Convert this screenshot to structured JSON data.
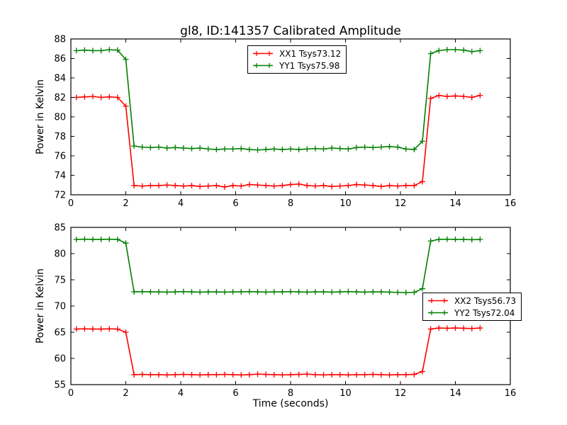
{
  "figure": {
    "title": "gl8, ID:141357 Calibrated Amplitude",
    "background": "#ffffff"
  },
  "colors": {
    "red_series": "#ff0000",
    "green_series": "#007f00",
    "axis": "#000000"
  },
  "chart_data": [
    {
      "type": "line",
      "ylabel": "Power in Kelvin",
      "xlabel": "",
      "xlim": [
        0,
        16
      ],
      "ylim": [
        72,
        88
      ],
      "xticks": [
        0,
        2,
        4,
        6,
        8,
        10,
        12,
        14,
        16
      ],
      "yticks": [
        72,
        74,
        76,
        78,
        80,
        82,
        84,
        86,
        88
      ],
      "grid": false,
      "legend_position": "top-center",
      "x": [
        0.2,
        0.5,
        0.8,
        1.1,
        1.4,
        1.7,
        2.0,
        2.3,
        2.6,
        2.9,
        3.2,
        3.5,
        3.8,
        4.1,
        4.4,
        4.7,
        5.0,
        5.3,
        5.6,
        5.9,
        6.2,
        6.5,
        6.8,
        7.1,
        7.4,
        7.7,
        8.0,
        8.3,
        8.6,
        8.9,
        9.2,
        9.5,
        9.8,
        10.1,
        10.4,
        10.7,
        11.0,
        11.3,
        11.6,
        11.9,
        12.2,
        12.5,
        12.8,
        13.1,
        13.4,
        13.7,
        14.0,
        14.3,
        14.6,
        14.9
      ],
      "series": [
        {
          "name": "XX1",
          "legend_label": "XX1 Tsys73.12",
          "color": "#ff0000",
          "marker": "plus",
          "y": [
            82.0,
            82.05,
            82.1,
            82.0,
            82.05,
            82.0,
            81.1,
            72.95,
            72.9,
            72.95,
            72.95,
            73.0,
            72.95,
            72.9,
            72.95,
            72.85,
            72.9,
            72.95,
            72.8,
            72.95,
            72.9,
            73.05,
            73.0,
            72.95,
            72.9,
            72.95,
            73.05,
            73.1,
            72.95,
            72.9,
            72.95,
            72.85,
            72.9,
            72.95,
            73.05,
            73.0,
            72.95,
            72.85,
            72.95,
            72.9,
            72.95,
            72.95,
            73.35,
            81.9,
            82.2,
            82.1,
            82.15,
            82.1,
            82.0,
            82.2
          ]
        },
        {
          "name": "YY1",
          "legend_label": "YY1 Tsys75.98",
          "color": "#007f00",
          "marker": "plus",
          "y": [
            86.8,
            86.85,
            86.8,
            86.8,
            86.9,
            86.85,
            85.9,
            77.0,
            76.9,
            76.85,
            76.9,
            76.8,
            76.85,
            76.8,
            76.75,
            76.8,
            76.7,
            76.65,
            76.7,
            76.7,
            76.75,
            76.65,
            76.6,
            76.65,
            76.7,
            76.65,
            76.7,
            76.65,
            76.7,
            76.75,
            76.7,
            76.8,
            76.75,
            76.7,
            76.85,
            76.9,
            76.85,
            76.9,
            76.95,
            76.9,
            76.7,
            76.65,
            77.5,
            86.5,
            86.8,
            86.9,
            86.9,
            86.85,
            86.7,
            86.8
          ]
        }
      ]
    },
    {
      "type": "line",
      "ylabel": "Power in Kelvin",
      "xlabel": "Time (seconds)",
      "xlim": [
        0,
        16
      ],
      "ylim": [
        55,
        85
      ],
      "xticks": [
        0,
        2,
        4,
        6,
        8,
        10,
        12,
        14,
        16
      ],
      "yticks": [
        55,
        60,
        65,
        70,
        75,
        80,
        85
      ],
      "grid": false,
      "legend_position": "right-middle",
      "x": [
        0.2,
        0.5,
        0.8,
        1.1,
        1.4,
        1.7,
        2.0,
        2.3,
        2.6,
        2.9,
        3.2,
        3.5,
        3.8,
        4.1,
        4.4,
        4.7,
        5.0,
        5.3,
        5.6,
        5.9,
        6.2,
        6.5,
        6.8,
        7.1,
        7.4,
        7.7,
        8.0,
        8.3,
        8.6,
        8.9,
        9.2,
        9.5,
        9.8,
        10.1,
        10.4,
        10.7,
        11.0,
        11.3,
        11.6,
        11.9,
        12.2,
        12.5,
        12.8,
        13.1,
        13.4,
        13.7,
        14.0,
        14.3,
        14.6,
        14.9
      ],
      "series": [
        {
          "name": "XX2",
          "legend_label": "XX2 Tsys56.73",
          "color": "#ff0000",
          "marker": "plus",
          "y": [
            65.6,
            65.65,
            65.6,
            65.6,
            65.65,
            65.6,
            65.0,
            56.9,
            56.95,
            56.9,
            56.9,
            56.85,
            56.9,
            56.95,
            56.9,
            56.85,
            56.9,
            56.9,
            56.95,
            56.9,
            56.85,
            56.9,
            57.0,
            56.95,
            56.9,
            56.85,
            56.9,
            56.95,
            57.0,
            56.9,
            56.85,
            56.9,
            56.9,
            56.85,
            56.9,
            56.9,
            56.95,
            56.9,
            56.85,
            56.9,
            56.9,
            56.95,
            57.5,
            65.6,
            65.8,
            65.75,
            65.8,
            65.75,
            65.7,
            65.8
          ]
        },
        {
          "name": "YY2",
          "legend_label": "YY2 Tsys72.04",
          "color": "#007f00",
          "marker": "plus",
          "y": [
            82.7,
            82.75,
            82.7,
            82.7,
            82.75,
            82.7,
            82.0,
            72.7,
            72.75,
            72.7,
            72.7,
            72.65,
            72.7,
            72.75,
            72.7,
            72.65,
            72.7,
            72.7,
            72.65,
            72.7,
            72.7,
            72.75,
            72.7,
            72.65,
            72.7,
            72.7,
            72.75,
            72.7,
            72.65,
            72.7,
            72.7,
            72.65,
            72.7,
            72.75,
            72.7,
            72.65,
            72.7,
            72.7,
            72.65,
            72.6,
            72.55,
            72.6,
            73.3,
            82.4,
            82.7,
            82.75,
            82.7,
            82.7,
            82.65,
            82.7
          ]
        }
      ]
    }
  ]
}
